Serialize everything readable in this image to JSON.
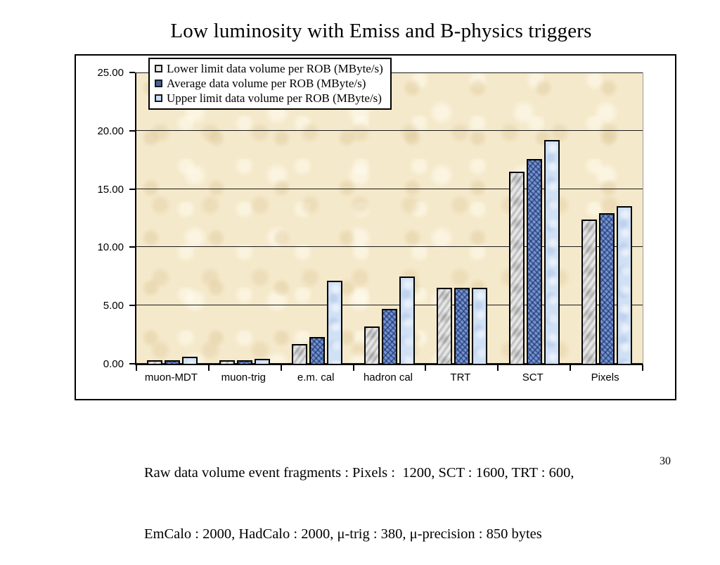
{
  "slide": {
    "title": "Low luminosity with Emiss and B-physics triggers",
    "footer_line1": "Raw data volume event fragments : Pixels :  1200, SCT : 1600, TRT : 600,",
    "footer_line2": "EmCalo : 2000, HadCalo : 2000, μ-trig : 380, μ-precision : 850 bytes",
    "page_number": "30"
  },
  "chart_data": {
    "type": "bar",
    "title": "",
    "xlabel": "",
    "ylabel": "",
    "categories": [
      "muon-MDT",
      "muon-trig",
      "e.m. cal",
      "hadron cal",
      "TRT",
      "SCT",
      "Pixels"
    ],
    "series": [
      {
        "name": "Lower limit data volume per ROB (MByte/s)",
        "color": "#DBDBDB",
        "marker_color": "#E8E8E8",
        "values": [
          0.1,
          0.1,
          1.7,
          3.2,
          6.5,
          16.5,
          12.4
        ]
      },
      {
        "name": "Average data volume per ROB (MByte/s)",
        "color": "#5F7EBE",
        "marker_color": "#46619C",
        "values": [
          0.25,
          0.3,
          2.3,
          4.7,
          6.5,
          17.6,
          12.9
        ]
      },
      {
        "name": "Upper limit data volume per ROB (MByte/s)",
        "color": "#D0E0F5",
        "marker_color": "#C9DCF2",
        "values": [
          0.6,
          0.4,
          7.1,
          7.5,
          6.5,
          19.2,
          13.5
        ]
      }
    ],
    "ylim": [
      0,
      25
    ],
    "ytick_step": 5,
    "ytick_labels": [
      "0.00",
      "5.00",
      "10.00",
      "15.00",
      "20.00",
      "25.00"
    ],
    "grid": true,
    "legend_position": "top-left-inside",
    "plot_background": "#F5E9CB",
    "gridline_color": "#1a1a1a"
  }
}
